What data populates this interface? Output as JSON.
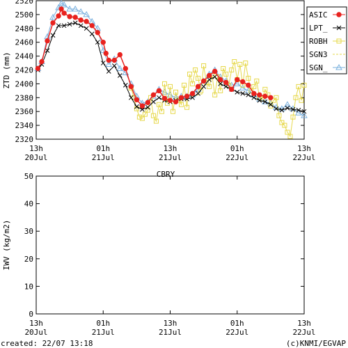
{
  "station": "CBRY",
  "footer": {
    "created": "created: 22/07 13:18",
    "credit": "(c)KNMI/EGVAP"
  },
  "x_ticks": [
    {
      "t": 0,
      "top": "13h",
      "bottom": "20Jul"
    },
    {
      "t": 12,
      "top": "01h",
      "bottom": "21Jul"
    },
    {
      "t": 24,
      "top": "13h",
      "bottom": "21Jul"
    },
    {
      "t": 36,
      "top": "01h",
      "bottom": "22Jul"
    },
    {
      "t": 48,
      "top": "13h",
      "bottom": "22Jul"
    }
  ],
  "chart_data": [
    {
      "type": "line",
      "ylabel": "ZTD (mm)",
      "xlim": [
        0,
        48
      ],
      "ylim": [
        2320,
        2520
      ],
      "yticks": [
        2320,
        2340,
        2360,
        2380,
        2400,
        2420,
        2440,
        2460,
        2480,
        2500,
        2520
      ],
      "legend_position": "top-right",
      "series": [
        {
          "name": "ASIC",
          "color": "#e8221e",
          "marker": "circle",
          "x": [
            0.3,
            1,
            2,
            3,
            4,
            4.5,
            5,
            6,
            7,
            8,
            9,
            10,
            11,
            12,
            12.5,
            13,
            14,
            15,
            16,
            17,
            18,
            19,
            20,
            21,
            22,
            23,
            24,
            25,
            26,
            27,
            28,
            29,
            30,
            31,
            32,
            33,
            34,
            35,
            36,
            37,
            38,
            39,
            40,
            41,
            42
          ],
          "y": [
            2422,
            2432,
            2462,
            2488,
            2498,
            2508,
            2502,
            2497,
            2496,
            2492,
            2490,
            2484,
            2474,
            2460,
            2444,
            2434,
            2434,
            2442,
            2422,
            2396,
            2377,
            2368,
            2373,
            2384,
            2390,
            2379,
            2376,
            2374,
            2380,
            2382,
            2386,
            2396,
            2404,
            2412,
            2418,
            2406,
            2402,
            2392,
            2406,
            2403,
            2398,
            2386,
            2384,
            2382,
            2380
          ]
        },
        {
          "name": "LPT_",
          "color": "#000000",
          "marker": "x",
          "x": [
            0.3,
            1,
            2,
            3,
            4,
            5,
            6,
            7,
            8,
            9,
            10,
            11,
            12,
            13,
            14,
            15,
            16,
            17,
            18,
            19,
            20,
            21,
            22,
            23,
            24,
            25,
            26,
            27,
            28,
            29,
            30,
            31,
            32,
            33,
            34,
            35,
            36,
            37,
            38,
            39,
            40,
            41,
            42,
            43,
            44,
            45,
            46,
            47,
            48
          ],
          "y": [
            2420,
            2428,
            2448,
            2470,
            2484,
            2484,
            2486,
            2488,
            2484,
            2480,
            2472,
            2460,
            2430,
            2418,
            2426,
            2412,
            2398,
            2380,
            2367,
            2363,
            2366,
            2374,
            2380,
            2376,
            2374,
            2376,
            2378,
            2378,
            2380,
            2386,
            2396,
            2406,
            2410,
            2400,
            2396,
            2392,
            2388,
            2386,
            2384,
            2380,
            2376,
            2374,
            2370,
            2364,
            2362,
            2365,
            2363,
            2362,
            2360
          ]
        },
        {
          "name": "ROBH",
          "color": "#e6d84a",
          "marker": "square",
          "x": [
            17,
            17.5,
            18,
            18.5,
            19,
            19.5,
            20,
            20.5,
            21,
            21.5,
            22,
            22.5,
            23,
            23.5,
            24,
            24.5,
            25,
            25.5,
            26,
            26.5,
            27,
            27.5,
            28,
            28.5,
            29,
            29.5,
            30,
            30.5,
            31,
            31.5,
            32,
            32.5,
            33,
            33.5,
            34,
            34.5,
            35,
            35.5,
            36,
            36.5,
            37,
            37.5,
            38,
            38.5,
            39,
            39.5,
            40,
            40.5,
            41,
            41.5,
            42,
            42.5,
            43,
            43.5,
            44,
            44.5,
            45,
            45.5,
            46,
            46.5,
            47,
            47.5,
            48
          ],
          "y": [
            2394,
            2380,
            2364,
            2352,
            2350,
            2356,
            2362,
            2380,
            2354,
            2346,
            2370,
            2360,
            2400,
            2372,
            2396,
            2360,
            2388,
            2376,
            2370,
            2398,
            2366,
            2414,
            2400,
            2420,
            2408,
            2390,
            2426,
            2402,
            2396,
            2412,
            2384,
            2410,
            2390,
            2422,
            2414,
            2398,
            2420,
            2432,
            2406,
            2428,
            2398,
            2430,
            2408,
            2390,
            2396,
            2404,
            2380,
            2378,
            2392,
            2384,
            2368,
            2376,
            2380,
            2354,
            2344,
            2340,
            2330,
            2324,
            2352,
            2380,
            2396,
            2376,
            2398
          ]
        },
        {
          "name": "SGN3",
          "color": "#e6d84a",
          "marker": "none",
          "x": [
            27,
            28,
            29,
            30
          ],
          "y": [
            2380,
            2382,
            2384,
            2386
          ]
        },
        {
          "name": "SGN_",
          "color": "#7ab0de",
          "marker": "triangle",
          "x": [
            0.3,
            1,
            2,
            3,
            4,
            4.5,
            5,
            6,
            7,
            8,
            9,
            10,
            11,
            12,
            13,
            14,
            15,
            16,
            17,
            18,
            19,
            20,
            21,
            22,
            23,
            24,
            25,
            26,
            27,
            28,
            29,
            30,
            31,
            32,
            33,
            34,
            35,
            36,
            37,
            38,
            39,
            40,
            41,
            42,
            43,
            44,
            45,
            46,
            47,
            48
          ],
          "y": [
            2422,
            2432,
            2468,
            2496,
            2510,
            2516,
            2514,
            2508,
            2508,
            2504,
            2500,
            2490,
            2480,
            2448,
            2428,
            2436,
            2422,
            2416,
            2400,
            2382,
            2372,
            2374,
            2382,
            2392,
            2388,
            2384,
            2380,
            2382,
            2382,
            2384,
            2392,
            2404,
            2414,
            2420,
            2410,
            2404,
            2398,
            2400,
            2394,
            2390,
            2384,
            2378,
            2374,
            2372,
            2366,
            2364,
            2370,
            2364,
            2358,
            2354
          ]
        }
      ]
    },
    {
      "type": "line",
      "title": "CBRY",
      "ylabel": "IWV (kg/m2)",
      "xlim": [
        0,
        48
      ],
      "ylim": [
        0,
        50
      ],
      "yticks": [
        0,
        10,
        20,
        30,
        40,
        50
      ],
      "series": []
    }
  ]
}
